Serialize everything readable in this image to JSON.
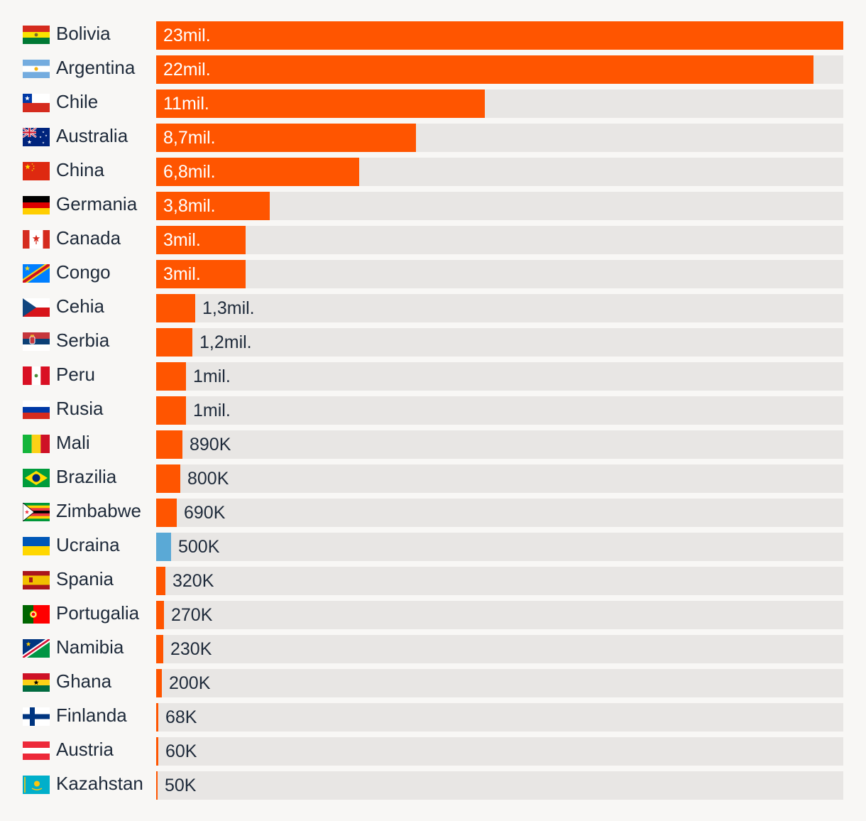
{
  "chart_data": {
    "type": "bar",
    "orientation": "horizontal",
    "categories": [
      "Bolivia",
      "Argentina",
      "Chile",
      "Australia",
      "China",
      "Germania",
      "Canada",
      "Congo",
      "Cehia",
      "Serbia",
      "Peru",
      "Rusia",
      "Mali",
      "Brazilia",
      "Zimbabwe",
      "Ucraina",
      "Spania",
      "Portugalia",
      "Namibia",
      "Ghana",
      "Finlanda",
      "Austria",
      "Kazahstan"
    ],
    "values": [
      23000000,
      22000000,
      11000000,
      8700000,
      6800000,
      3800000,
      3000000,
      3000000,
      1300000,
      1200000,
      1000000,
      1000000,
      890000,
      800000,
      690000,
      500000,
      320000,
      270000,
      230000,
      200000,
      68000,
      60000,
      50000
    ],
    "labels": [
      "23mil.",
      "22mil.",
      "11mil.",
      "8,7mil.",
      "6,8mil.",
      "3,8mil.",
      "3mil.",
      "3mil.",
      "1,3mil.",
      "1,2mil.",
      "1mil.",
      "1mil.",
      "890K",
      "800K",
      "690K",
      "500K",
      "320K",
      "270K",
      "230K",
      "200K",
      "68K",
      "60K",
      "50K"
    ],
    "flags": [
      "bolivia-flag-icon",
      "argentina-flag-icon",
      "chile-flag-icon",
      "australia-flag-icon",
      "china-flag-icon",
      "germany-flag-icon",
      "canada-flag-icon",
      "congo-flag-icon",
      "czechia-flag-icon",
      "serbia-flag-icon",
      "peru-flag-icon",
      "russia-flag-icon",
      "mali-flag-icon",
      "brazil-flag-icon",
      "zimbabwe-flag-icon",
      "ukraine-flag-icon",
      "spain-flag-icon",
      "portugal-flag-icon",
      "namibia-flag-icon",
      "ghana-flag-icon",
      "finland-flag-icon",
      "austria-flag-icon",
      "kazakhstan-flag-icon"
    ],
    "highlight_category": "Ucraina",
    "xlim": [
      0,
      23000000
    ],
    "colors": {
      "bar": "#ff5500",
      "highlight": "#5aa9d6",
      "track": "#e8e6e4",
      "label_inside": "#ffffff",
      "label_outside": "#1e2a3a"
    }
  }
}
